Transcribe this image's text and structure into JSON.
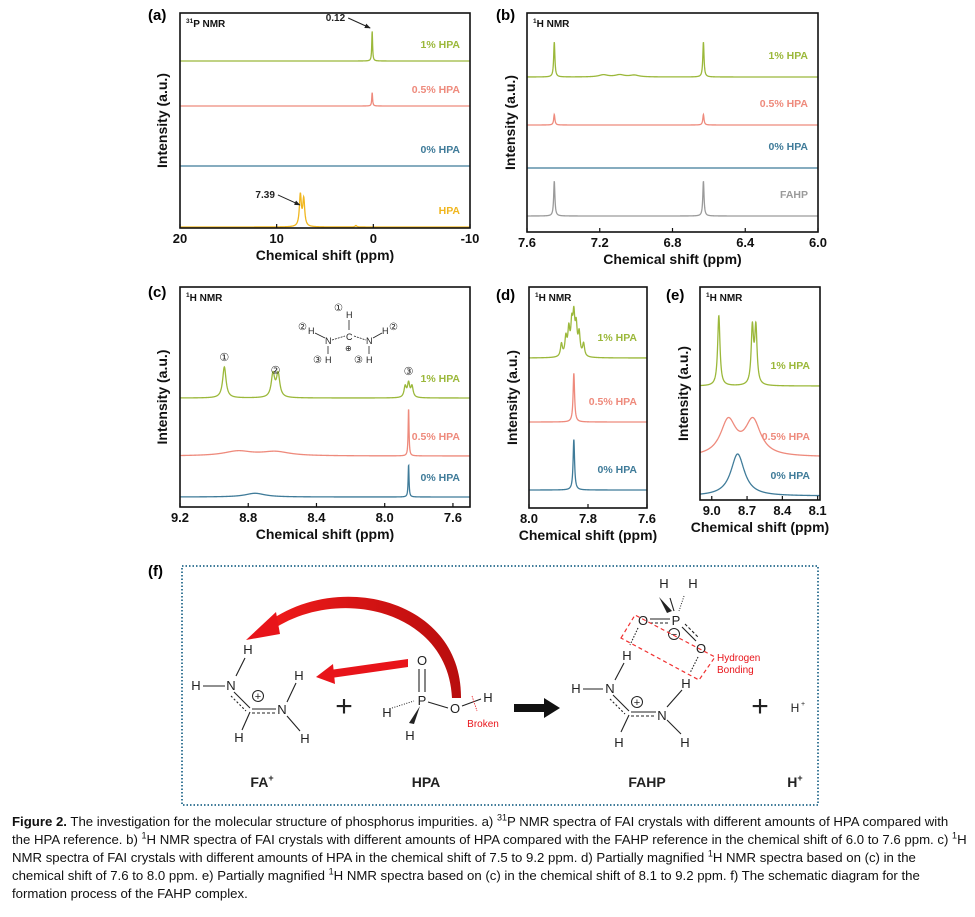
{
  "figure": {
    "panels": [
      "(a)",
      "(b)",
      "(c)",
      "(d)",
      "(e)",
      "(f)"
    ]
  },
  "chart_data": [
    {
      "id": "a",
      "type": "line",
      "panel": "(a)",
      "annotation_sup": "31",
      "annotation": "P NMR",
      "xlabel": "Chemical shift (ppm)",
      "ylabel": "Intensity (a.u.)",
      "xlim": [
        20,
        -10
      ],
      "xticks": [
        20,
        10,
        0,
        -10
      ],
      "series": [
        {
          "name": "1% HPA",
          "color": "#9bb83a",
          "peaks": [
            [
              0.12,
              1,
              0.05
            ]
          ]
        },
        {
          "name": "0.5% HPA",
          "color": "#ee8a7c",
          "peaks": [
            [
              0.12,
              0.45,
              0.05
            ]
          ]
        },
        {
          "name": "0% HPA",
          "color": "#3f7b99",
          "peaks": []
        },
        {
          "name": "HPA",
          "color": "#f0b61e",
          "peaks": [
            [
              7.55,
              1.05,
              0.12
            ],
            [
              7.2,
              0.9,
              0.12
            ],
            [
              1.8,
              0.05,
              0.1
            ]
          ]
        }
      ],
      "callouts": [
        {
          "text": "0.12",
          "x": 0.12,
          "series": 0
        },
        {
          "text": "7.39",
          "x": 7.39,
          "series": 3
        }
      ]
    },
    {
      "id": "b",
      "type": "line",
      "panel": "(b)",
      "annotation_sup": "1",
      "annotation": "H NMR",
      "xlabel": "Chemical shift (ppm)",
      "ylabel": "Intensity (a.u.)",
      "xlim": [
        7.6,
        6.0
      ],
      "xticks": [
        7.6,
        7.2,
        6.8,
        6.4,
        6.0
      ],
      "series": [
        {
          "name": "1% HPA",
          "color": "#9bb83a",
          "peaks": [
            [
              7.45,
              1,
              0.004
            ],
            [
              6.63,
              1,
              0.004
            ],
            [
              7.18,
              0.06,
              0.03
            ],
            [
              7.09,
              0.06,
              0.03
            ],
            [
              7.01,
              0.05,
              0.03
            ]
          ]
        },
        {
          "name": "0.5% HPA",
          "color": "#ee8a7c",
          "peaks": [
            [
              7.45,
              0.3,
              0.004
            ],
            [
              6.63,
              0.3,
              0.004
            ]
          ]
        },
        {
          "name": "0% HPA",
          "color": "#3f7b99",
          "peaks": []
        },
        {
          "name": "FAHP",
          "color": "#9a9a9a",
          "peaks": [
            [
              7.45,
              1,
              0.004
            ],
            [
              6.63,
              1,
              0.004
            ]
          ]
        }
      ]
    },
    {
      "id": "c",
      "type": "line",
      "panel": "(c)",
      "annotation_sup": "1",
      "annotation": "H NMR",
      "xlabel": "Chemical shift (ppm)",
      "ylabel": "Intensity (a.u.)",
      "xlim": [
        9.2,
        7.5
      ],
      "xticks": [
        9.2,
        8.8,
        8.4,
        8.0,
        7.6
      ],
      "series": [
        {
          "name": "1% HPA",
          "color": "#9bb83a",
          "peaks": [
            [
              8.94,
              1,
              0.012
            ],
            [
              8.655,
              0.75,
              0.012
            ],
            [
              8.625,
              0.75,
              0.012
            ],
            [
              7.88,
              0.35,
              0.008
            ],
            [
              7.86,
              0.45,
              0.008
            ],
            [
              7.84,
              0.35,
              0.008
            ]
          ]
        },
        {
          "name": "0.5% HPA",
          "color": "#ee8a7c",
          "peaks": [
            [
              8.86,
              0.15,
              0.1
            ],
            [
              8.64,
              0.13,
              0.1
            ],
            [
              7.86,
              1.55,
              0.003
            ]
          ]
        },
        {
          "name": "0% HPA",
          "color": "#3f7b99",
          "peaks": [
            [
              8.76,
              0.12,
              0.07
            ],
            [
              7.86,
              1.05,
              0.003
            ]
          ]
        }
      ],
      "peak_labels": [
        {
          "text": "①",
          "x": 8.94
        },
        {
          "text": "②",
          "x": 8.64
        },
        {
          "text": "③",
          "x": 7.86
        }
      ]
    },
    {
      "id": "d",
      "type": "line",
      "panel": "(d)",
      "annotation_sup": "1",
      "annotation": "H NMR",
      "xlabel": "Chemical shift (ppm)",
      "ylabel": "Intensity (a.u.)",
      "xlim": [
        8.0,
        7.6
      ],
      "xticks": [
        8.0,
        7.8,
        7.6
      ],
      "series": [
        {
          "name": "1% HPA",
          "color": "#9bb83a",
          "peaks": [
            [
              7.89,
              0.35,
              0.004
            ],
            [
              7.875,
              0.5,
              0.004
            ],
            [
              7.865,
              0.7,
              0.004
            ],
            [
              7.855,
              0.8,
              0.004
            ],
            [
              7.848,
              1,
              0.004
            ],
            [
              7.84,
              0.75,
              0.004
            ],
            [
              7.83,
              0.6,
              0.004
            ],
            [
              7.815,
              0.35,
              0.004
            ]
          ]
        },
        {
          "name": "0.5% HPA",
          "color": "#ee8a7c",
          "peaks": [
            [
              7.848,
              1.35,
              0.003
            ]
          ]
        },
        {
          "name": "0% HPA",
          "color": "#3f7b99",
          "peaks": [
            [
              7.848,
              1.4,
              0.003
            ]
          ]
        }
      ]
    },
    {
      "id": "e",
      "type": "line",
      "panel": "(e)",
      "annotation_sup": "1",
      "annotation": "H NMR",
      "xlabel": "Chemical shift (ppm)",
      "ylabel": "Intensity (a.u.)",
      "xlim": [
        9.1,
        8.08
      ],
      "xticks": [
        9.0,
        8.7,
        8.4,
        8.1
      ],
      "series": [
        {
          "name": "1% HPA",
          "color": "#9bb83a",
          "peaks": [
            [
              8.94,
              1,
              0.012
            ],
            [
              8.655,
              0.8,
              0.012
            ],
            [
              8.625,
              0.8,
              0.012
            ]
          ]
        },
        {
          "name": "0.5% HPA",
          "color": "#ee8a7c",
          "peaks": [
            [
              8.86,
              0.5,
              0.08
            ],
            [
              8.65,
              0.5,
              0.08
            ]
          ]
        },
        {
          "name": "0% HPA",
          "color": "#3f7b99",
          "peaks": [
            [
              8.78,
              0.6,
              0.07
            ]
          ]
        }
      ]
    }
  ],
  "inset_fa": {
    "H": "H",
    "N": "N",
    "C": "C",
    "plus": "⊕",
    "n1": "①",
    "n2": "②",
    "n3": "③"
  },
  "scheme": {
    "atom": {
      "H": "H",
      "N": "N",
      "O": "O",
      "P": "P"
    },
    "plus_charge": "+",
    "minus_charge": "−",
    "plus_sign": "+",
    "broken": "Broken",
    "hbond_line1": "Hydrogen",
    "hbond_line2": "Bonding",
    "h_plus_small": "H",
    "label_fa": "FA",
    "label_fa_sup": "+",
    "label_hpa": "HPA",
    "label_fahp": "FAHP",
    "label_hplus": "H",
    "label_hplus_sup": "+",
    "colors": {
      "arrow": "#e8141a",
      "border": "#3f7b99"
    }
  },
  "caption": {
    "label": "Figure 2.",
    "segments": [
      {
        "t": " The investigation for the molecular structure of phosphorus impurities. a) "
      },
      {
        "sup": "31"
      },
      {
        "t": "P NMR spectra of FAI crystals with different amounts of HPA compared with the HPA reference. b) "
      },
      {
        "sup": "1"
      },
      {
        "t": "H NMR spectra of FAI crystals with different amounts of HPA compared with the FAHP reference in the chemical shift of 6.0 to 7.6 ppm. c) "
      },
      {
        "sup": "1"
      },
      {
        "t": "H NMR spectra of FAI crystals with different amounts of HPA in the chemical shift of 7.5 to 9.2 ppm. d) Partially magnified "
      },
      {
        "sup": "1"
      },
      {
        "t": "H NMR spectra based on (c) in the chemical shift of 7.6 to 8.0 ppm. e) Partially magnified "
      },
      {
        "sup": "1"
      },
      {
        "t": "H NMR spectra based on (c) in the chemical shift of 8.1 to 9.2 ppm. f) The schematic diagram for the formation process of the FAHP complex."
      }
    ]
  }
}
